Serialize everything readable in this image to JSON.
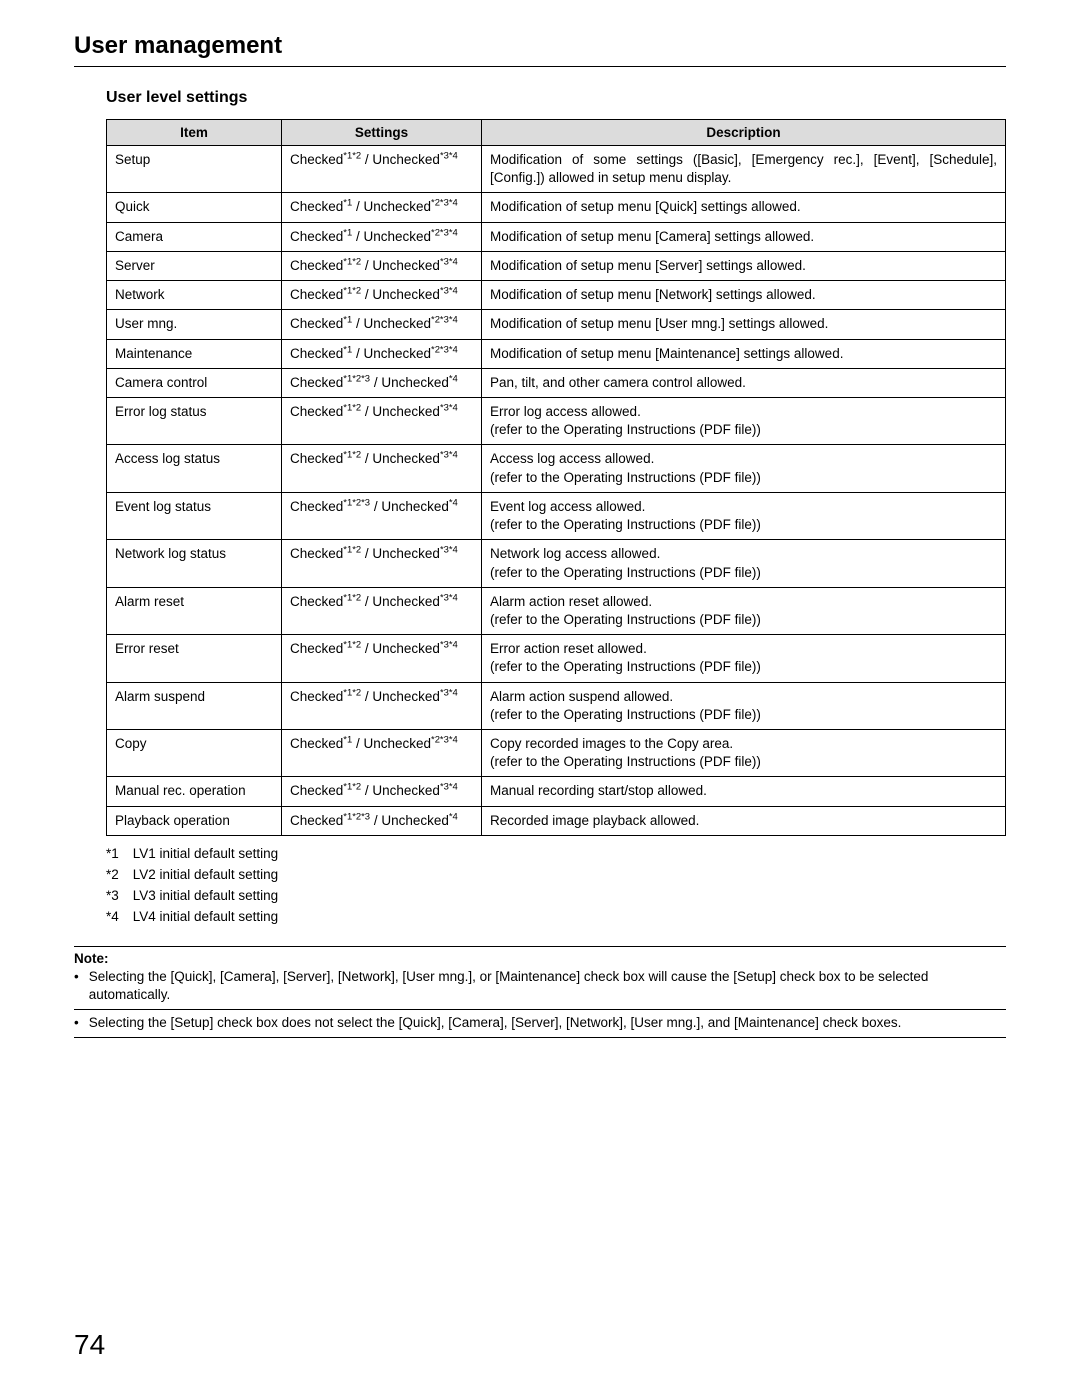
{
  "page_title": "User management",
  "section_title": "User level settings",
  "page_number": "74",
  "table": {
    "headers": {
      "item": "Item",
      "settings": "Settings",
      "description": "Description"
    },
    "rows": [
      {
        "item": "Setup",
        "checked_sup": "*1*2",
        "unchecked_sup": "*3*4",
        "desc": "Modification of some settings ([Basic], [Emergency rec.], [Event], [Schedule], [Config.]) allowed in setup menu display.",
        "desc_justify": true
      },
      {
        "item": "Quick",
        "checked_sup": "*1",
        "unchecked_sup": "*2*3*4",
        "desc": "Modification of setup menu [Quick] settings allowed."
      },
      {
        "item": "Camera",
        "checked_sup": "*1",
        "unchecked_sup": "*2*3*4",
        "desc": "Modification of setup menu [Camera] settings allowed."
      },
      {
        "item": "Server",
        "checked_sup": "*1*2",
        "unchecked_sup": "*3*4",
        "desc": "Modification of setup menu [Server] settings allowed."
      },
      {
        "item": "Network",
        "checked_sup": "*1*2",
        "unchecked_sup": "*3*4",
        "desc": "Modification of setup menu [Network] settings allowed."
      },
      {
        "item": "User mng.",
        "checked_sup": "*1",
        "unchecked_sup": "*2*3*4",
        "desc": "Modification of setup menu [User mng.] settings allowed."
      },
      {
        "item": "Maintenance",
        "checked_sup": "*1",
        "unchecked_sup": "*2*3*4",
        "desc": "Modification of setup menu [Maintenance] settings allowed."
      },
      {
        "item": "Camera control",
        "checked_sup": "*1*2*3",
        "unchecked_sup": "*4",
        "desc": "Pan, tilt, and other camera control allowed."
      },
      {
        "item": "Error log status",
        "checked_sup": "*1*2",
        "unchecked_sup": "*3*4",
        "desc": "Error log access allowed.\n(refer to the Operating Instructions (PDF file))"
      },
      {
        "item": "Access log status",
        "checked_sup": "*1*2",
        "unchecked_sup": "*3*4",
        "desc": "Access log access allowed.\n(refer to the Operating Instructions (PDF file))"
      },
      {
        "item": "Event log status",
        "checked_sup": "*1*2*3",
        "unchecked_sup": "*4",
        "desc": "Event log access allowed.\n(refer to the Operating Instructions (PDF file))"
      },
      {
        "item": "Network log status",
        "checked_sup": "*1*2",
        "unchecked_sup": "*3*4",
        "desc": "Network log access allowed.\n(refer to the Operating Instructions (PDF file))"
      },
      {
        "item": "Alarm reset",
        "checked_sup": "*1*2",
        "unchecked_sup": "*3*4",
        "desc": "Alarm action reset allowed.\n(refer to the Operating Instructions (PDF file))"
      },
      {
        "item": "Error reset",
        "checked_sup": "*1*2",
        "unchecked_sup": "*3*4",
        "desc": "Error action reset allowed.\n(refer to the Operating Instructions (PDF file))"
      },
      {
        "item": "Alarm suspend",
        "checked_sup": "*1*2",
        "unchecked_sup": "*3*4",
        "desc": "Alarm action suspend allowed.\n(refer to the Operating Instructions (PDF file))"
      },
      {
        "item": "Copy",
        "checked_sup": "*1",
        "unchecked_sup": "*2*3*4",
        "desc": "Copy recorded images to the Copy area.\n(refer to the Operating Instructions (PDF file))"
      },
      {
        "item": "Manual rec. operation",
        "checked_sup": "*1*2",
        "unchecked_sup": "*3*4",
        "desc": "Manual recording start/stop allowed."
      },
      {
        "item": "Playback operation",
        "checked_sup": "*1*2*3",
        "unchecked_sup": "*4",
        "desc": "Recorded image playback allowed."
      }
    ]
  },
  "settings_labels": {
    "checked": "Checked",
    "unchecked": "Unchecked",
    "separator": " / "
  },
  "footnotes": [
    {
      "key": "*1",
      "text": "LV1 initial default setting"
    },
    {
      "key": "*2",
      "text": "LV2 initial default setting"
    },
    {
      "key": "*3",
      "text": "LV3 initial default setting"
    },
    {
      "key": "*4",
      "text": "LV4 initial default setting"
    }
  ],
  "note": {
    "label": "Note:",
    "items": [
      "Selecting the [Quick], [Camera], [Server], [Network], [User mng.], or [Maintenance] check box will cause the [Setup] check box to be selected automatically.",
      "Selecting the [Setup] check box does not select the [Quick], [Camera], [Server], [Network], [User mng.], and [Maintenance] check boxes."
    ]
  }
}
